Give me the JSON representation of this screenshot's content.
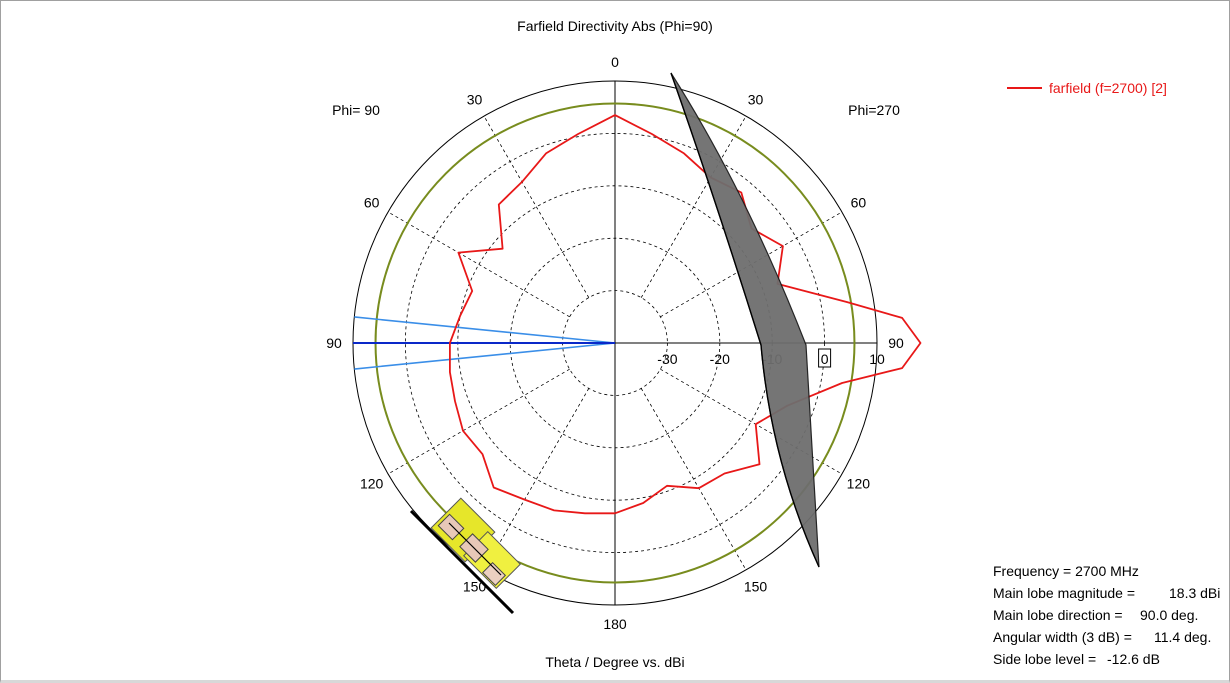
{
  "chart_data": {
    "type": "polar",
    "title": "Farfield Directivity Abs (Phi=90)",
    "xlabel": "Theta / Degree vs. dBi",
    "left_half_label": "Phi= 90",
    "right_half_label": "Phi=270",
    "angle_ticks": [
      "0",
      "30",
      "60",
      "90",
      "120",
      "150",
      "180",
      "150",
      "120",
      "90",
      "60",
      "30"
    ],
    "radial_ticks": [
      "-30",
      "-20",
      "-10",
      "0",
      "10"
    ],
    "radial_range": [
      -40,
      10
    ],
    "colors": {
      "series": "#e81818",
      "main_lobe": "#0a28c8",
      "beamwidth": "#3a8ee8",
      "threshold": "#788c1e",
      "grid": "#000000"
    },
    "threshold_db": 5.7,
    "series": [
      {
        "name": "farfield (f=2700) [2]",
        "angle_deg": [
          -180,
          -170,
          -160,
          -150,
          -140,
          -130,
          -120,
          -110,
          -100,
          -95,
          -90,
          -85,
          -80,
          -70,
          -60,
          -50,
          -40,
          -30,
          -20,
          -10,
          0,
          10,
          20,
          30,
          40,
          50,
          60,
          70,
          80,
          90,
          100,
          110,
          120,
          130,
          140,
          150,
          160,
          170,
          180
        ],
        "directivity_dbi": [
          -7.5,
          -9.0,
          -11.0,
          -8.0,
          -7.5,
          -4.0,
          -9.0,
          -5.0,
          4.0,
          15.0,
          18.3,
          15.0,
          5.0,
          -7.0,
          -3.0,
          -6.0,
          -2.5,
          -3.5,
          -1.5,
          0.5,
          3.5,
          0.5,
          -1.5,
          -4.5,
          -5.5,
          -12.0,
          -5.5,
          -11.0,
          -10.0,
          -8.5,
          -8.0,
          -7.5,
          -6.5,
          -7.0,
          -4.0,
          -5.5,
          -6.0,
          -7.0,
          -7.5
        ]
      }
    ],
    "main_lobe_direction_deg": 90.0,
    "angular_width_deg": 11.4
  },
  "info": {
    "frequency_label": "Frequency = 2700 MHz",
    "main_lobe_magnitude_label": "Main lobe magnitude =",
    "main_lobe_magnitude_value": "18.3 dBi",
    "main_lobe_direction_label": "Main lobe direction =",
    "main_lobe_direction_value": "90.0 deg.",
    "angular_width_label": "Angular width (3 dB) =",
    "angular_width_value": "11.4 deg.",
    "side_lobe_label": "Side lobe level =",
    "side_lobe_value": "-12.6 dB"
  },
  "legend": {
    "position": "top-right"
  }
}
